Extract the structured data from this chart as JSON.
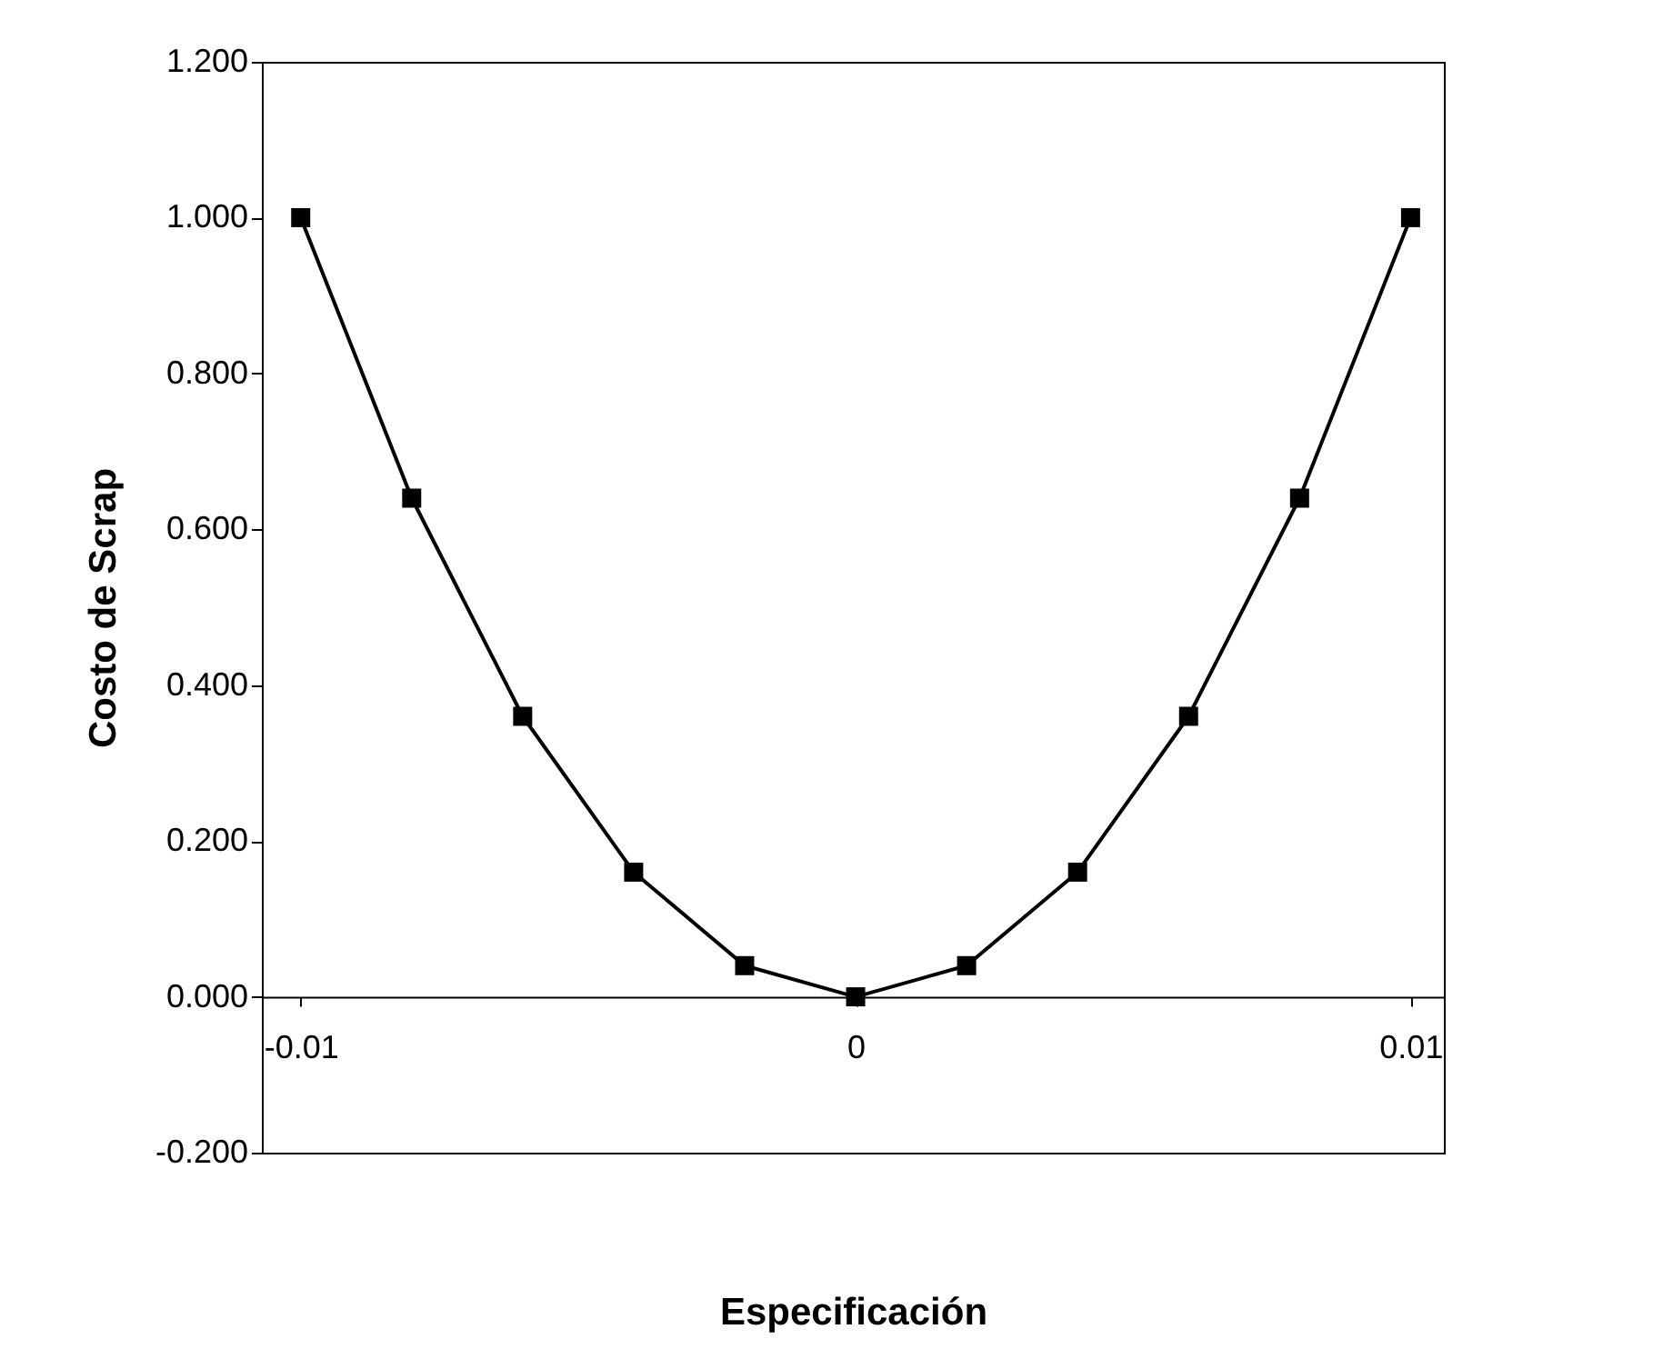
{
  "chart_data": {
    "type": "line",
    "xlabel": "Especificación",
    "ylabel": "Costo de Scrap",
    "x": [
      -0.01,
      -0.008,
      -0.006,
      -0.004,
      -0.002,
      0,
      0.002,
      0.004,
      0.006,
      0.008,
      0.01
    ],
    "series": [
      {
        "color": "#000000",
        "values": [
          1,
          0.64,
          0.36,
          0.16,
          0.04,
          0,
          0.04,
          0.16,
          0.36,
          0.64,
          1
        ]
      }
    ],
    "xlim": [
      -0.0107,
      0.0106
    ],
    "xticks": [
      -0.01,
      0,
      0.01
    ],
    "ylim": [
      -0.2,
      1.2
    ],
    "yticks": [
      {
        "value": -0.2,
        "label": "-0.200"
      },
      {
        "value": 0,
        "label": "0.000"
      },
      {
        "value": 0.2,
        "label": "0.200"
      },
      {
        "value": 0.4,
        "label": "0.400"
      },
      {
        "value": 0.6,
        "label": "0.600"
      },
      {
        "value": 0.8,
        "label": "0.800"
      },
      {
        "value": 1,
        "label": "1.000"
      },
      {
        "value": 1.2,
        "label": "1.200"
      }
    ],
    "grid": false,
    "legend": false,
    "marker": "square",
    "line_style": "solid"
  }
}
